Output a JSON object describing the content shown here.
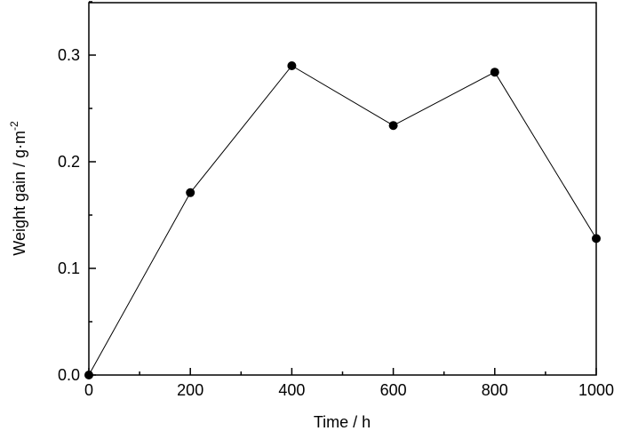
{
  "chart_data": {
    "type": "line",
    "title": "",
    "xlabel": "Time / h",
    "ylabel": "Weight gain / g·m",
    "ylabel_superscript": "-2",
    "x": [
      0,
      200,
      400,
      600,
      800,
      1000
    ],
    "series": [
      {
        "values": [
          0.0,
          0.171,
          0.29,
          0.234,
          0.284,
          0.128
        ]
      }
    ],
    "xlim": [
      0,
      1000
    ],
    "ylim": [
      0,
      0.35
    ],
    "xticks": [
      "0",
      "200",
      "400",
      "600",
      "800",
      "1000"
    ],
    "yticks": [
      "0.0",
      "0.1",
      "0.2",
      "0.3"
    ],
    "grid": false,
    "marker": "filled-circle",
    "color": "#000000"
  }
}
